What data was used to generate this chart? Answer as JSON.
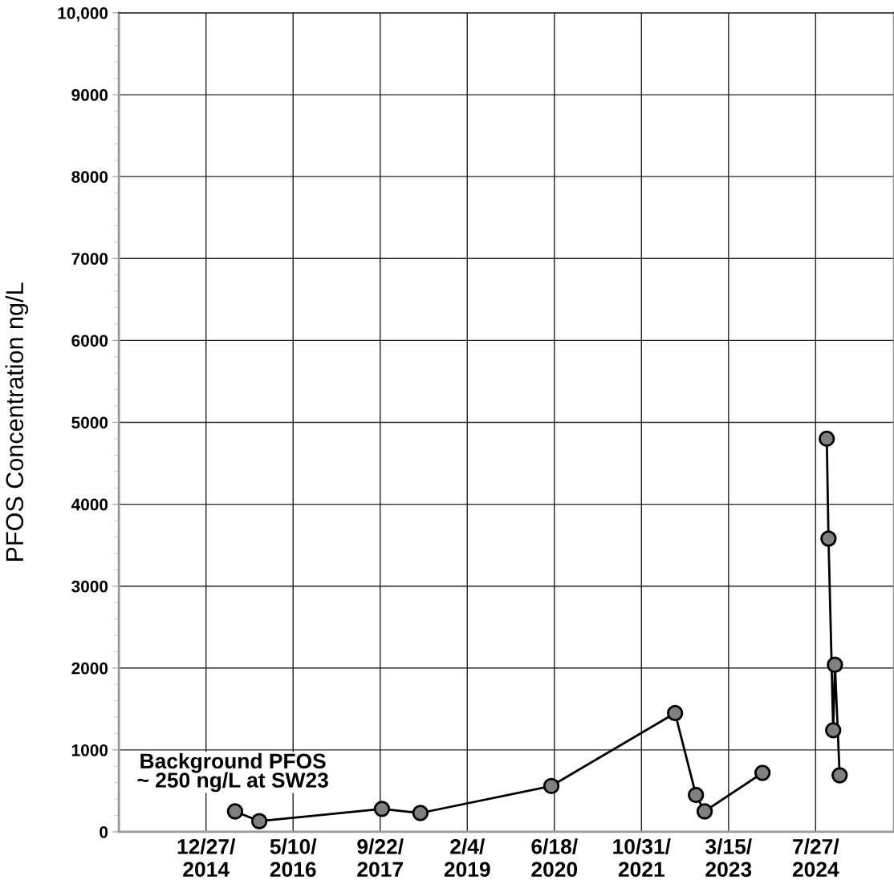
{
  "chart_data": {
    "type": "line",
    "ylabel": "PFOS Concentration ng/L",
    "x": [
      "2015-06-12",
      "2015-10-29",
      "2017-10-02",
      "2018-05-11",
      "2020-06-01",
      "2022-05-12",
      "2022-09-09",
      "2022-10-29",
      "2023-09-26",
      "2024-01-05",
      "2024-09-29",
      "2024-10-09",
      "2024-11-05",
      "2024-11-15",
      "2024-12-12"
    ],
    "series": [
      {
        "color": "#000000",
        "colors": [
          "#808080",
          "#808080",
          "#808080",
          "#808080",
          "#808080",
          "#808080",
          "#808080",
          "#808080",
          "#808080",
          "#808080",
          "#808080",
          "#808080",
          "#808080",
          "#808080",
          "#808080"
        ],
        "values": [
          250,
          130,
          280,
          230,
          560,
          1450,
          450,
          250,
          720,
          null,
          4800,
          3580,
          1240,
          2040,
          690
        ]
      }
    ],
    "marker": "circle",
    "line_style": "solid",
    "xlim": [
      "2013-08-14",
      "2025-10-20"
    ],
    "xticks": [
      {
        "value": "2014-12-27",
        "label": "12/27/\n2014"
      },
      {
        "value": "2016-05-10",
        "label": "5/10/\n2016"
      },
      {
        "value": "2017-09-22",
        "label": "9/22/\n2017"
      },
      {
        "value": "2019-02-04",
        "label": "2/4/\n2019"
      },
      {
        "value": "2020-06-18",
        "label": "6/18/\n2020"
      },
      {
        "value": "2021-10-31",
        "label": "10/31/\n2021"
      },
      {
        "value": "2023-03-15",
        "label": "3/15/\n2023"
      },
      {
        "value": "2024-07-27",
        "label": "7/27/\n2024"
      }
    ],
    "ylim": [
      0,
      10000
    ],
    "yticks": [
      0,
      1000,
      2000,
      3000,
      4000,
      5000,
      6000,
      7000,
      8000,
      9000,
      {
        "value": 10000,
        "label": "10,000"
      },
      {
        "value": 200,
        "label": null
      },
      {
        "value": 400,
        "label": null
      },
      {
        "value": 600,
        "label": null
      },
      {
        "value": 800,
        "label": null
      },
      {
        "value": 1200,
        "label": null
      },
      {
        "value": 1400,
        "label": null
      },
      {
        "value": 1600,
        "label": null
      },
      {
        "value": 1800,
        "label": null
      },
      {
        "value": 2200,
        "label": null
      },
      {
        "value": 2400,
        "label": null
      },
      {
        "value": 2600,
        "label": null
      },
      {
        "value": 2800,
        "label": null
      },
      {
        "value": 3200,
        "label": null
      },
      {
        "value": 3400,
        "label": null
      },
      {
        "value": 3600,
        "label": null
      },
      {
        "value": 3800,
        "label": null
      },
      {
        "value": 4200,
        "label": null
      },
      {
        "value": 4400,
        "label": null
      },
      {
        "value": 4600,
        "label": null
      },
      {
        "value": 4800,
        "label": null
      },
      {
        "value": 5200,
        "label": null
      },
      {
        "value": 5400,
        "label": null
      },
      {
        "value": 5600,
        "label": null
      },
      {
        "value": 5800,
        "label": null
      },
      {
        "value": 6200,
        "label": null
      },
      {
        "value": 6400,
        "label": null
      },
      {
        "value": 6600,
        "label": null
      },
      {
        "value": 6800,
        "label": null
      },
      {
        "value": 7200,
        "label": null
      },
      {
        "value": 7400,
        "label": null
      },
      {
        "value": 7600,
        "label": null
      },
      {
        "value": 7800,
        "label": null
      },
      {
        "value": 8200,
        "label": null
      },
      {
        "value": 8400,
        "label": null
      },
      {
        "value": 8600,
        "label": null
      },
      {
        "value": 8800,
        "label": null
      },
      {
        "value": 9200,
        "label": null
      },
      {
        "value": 9400,
        "label": null
      },
      {
        "value": 9600,
        "label": null
      },
      {
        "value": 9800,
        "label": null
      }
    ],
    "grid": true,
    "annotations": [
      "Background PFOS\n~ 250 ng/L at SW23"
    ]
  }
}
